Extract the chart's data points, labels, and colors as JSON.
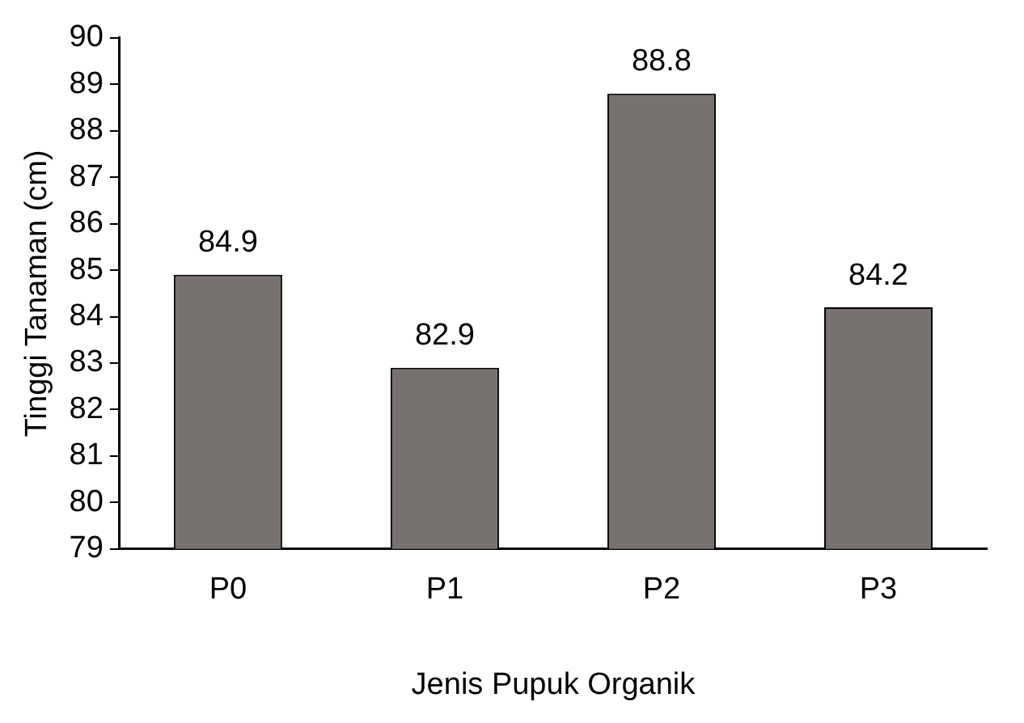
{
  "chart_data": {
    "type": "bar",
    "xlabel": "Jenis Pupuk Organik",
    "ylabel": "Tinggi Tanaman (cm)",
    "categories": [
      "P0",
      "P1",
      "P2",
      "P3"
    ],
    "values": [
      84.9,
      82.9,
      88.8,
      84.2
    ],
    "color": "#777270",
    "ylim": [
      79,
      90
    ],
    "yticks": [
      79,
      80,
      81,
      82,
      83,
      84,
      85,
      86,
      87,
      88,
      89,
      90
    ],
    "data_labels": true,
    "grid": false,
    "legend": false
  }
}
